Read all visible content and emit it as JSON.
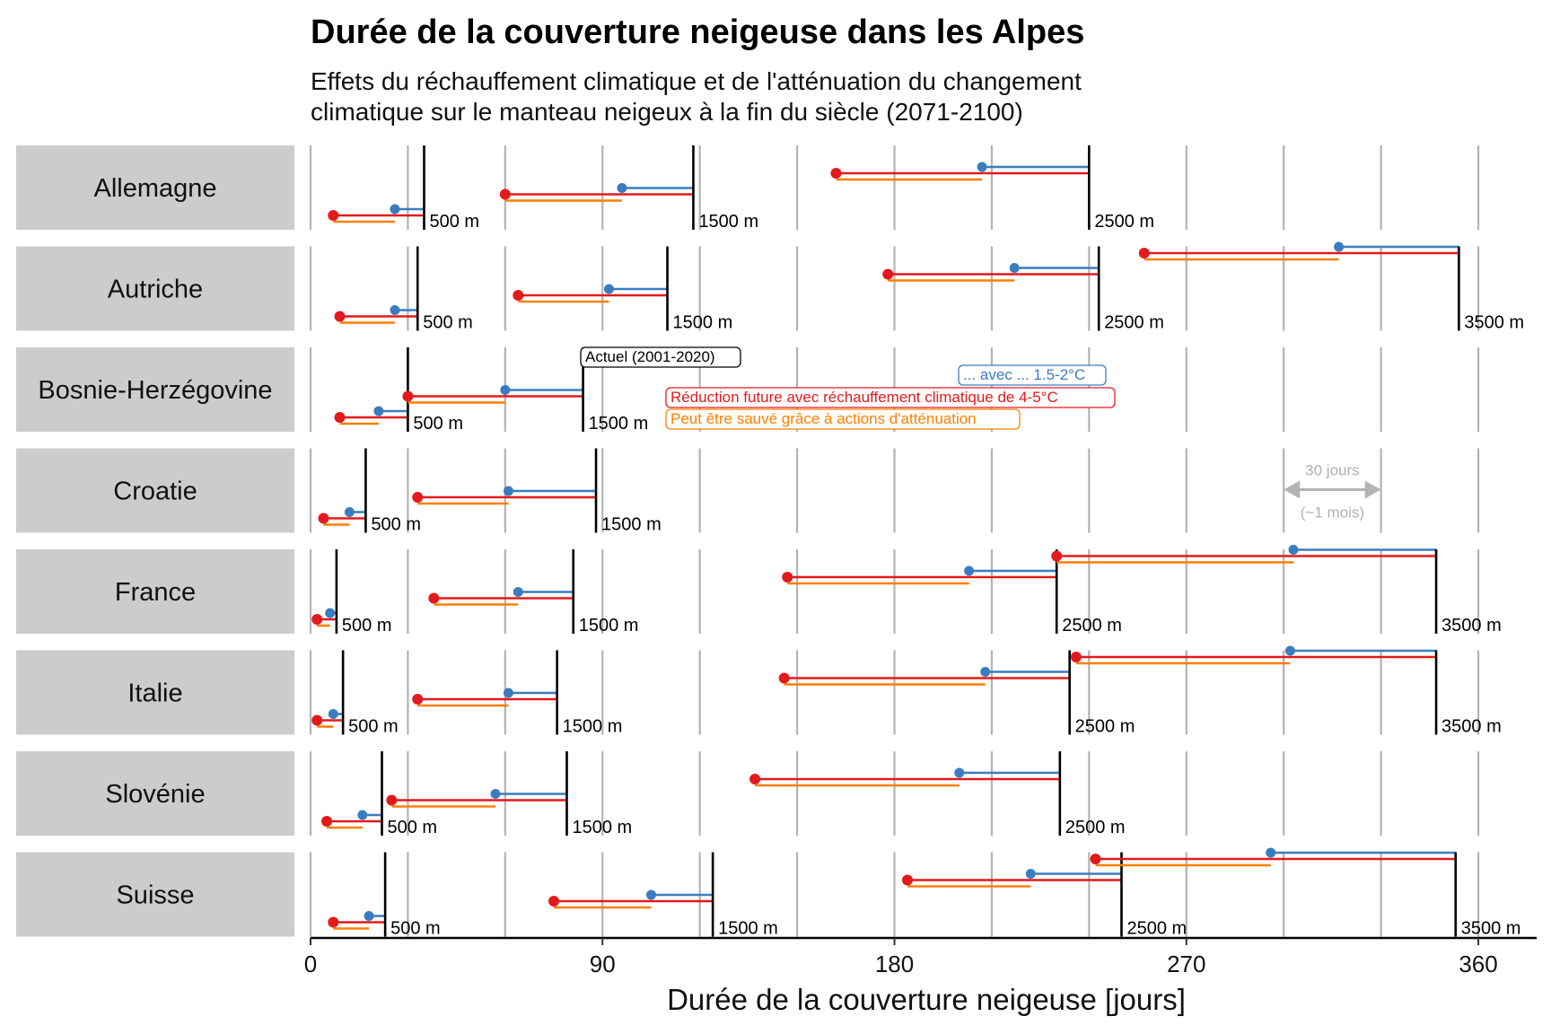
{
  "chart_data": {
    "type": "dumbbell",
    "title": "Durée de la couverture neigeuse dans les Alpes",
    "subtitle_lines": [
      "Effets du réchauffement climatique et de l'atténuation du changement",
      "climatique sur le manteau neigeux à la fin du siècle (2071-2100)"
    ],
    "xlabel": "Durée de la couverture neigeuse [jours]",
    "xlim": [
      0,
      380
    ],
    "xticks": [
      0,
      90,
      180,
      270,
      360
    ],
    "xtick_labels": [
      "0",
      "90",
      "180",
      "270",
      "360"
    ],
    "grid_step": 30,
    "colors": {
      "current": "#000000",
      "mitigated": "#3a7dbf",
      "warming": "#e31a1c",
      "saved": "#ff7f00",
      "grid": "#b3b3b3",
      "strip": "#cccccc"
    },
    "legend": {
      "current": "Actuel (2001-2020)",
      "mitigated": "... avec ... 1.5-2°C",
      "warming": "Réduction future avec réchauffement climatique de 4-5°C",
      "saved": "Peut être sauvé grâce à actions d'atténuation"
    },
    "scale_note": {
      "label": "30 jours",
      "sublabel": "(~1 mois)"
    },
    "countries": [
      {
        "name": "Allemagne",
        "stations": [
          {
            "alt": "500 m",
            "current": 35,
            "mitigated": 26,
            "warming": 7
          },
          {
            "alt": "1500 m",
            "current": 118,
            "mitigated": 96,
            "warming": 60
          },
          {
            "alt": "2500 m",
            "current": 240,
            "mitigated": 207,
            "warming": 162
          }
        ]
      },
      {
        "name": "Autriche",
        "stations": [
          {
            "alt": "500 m",
            "current": 33,
            "mitigated": 26,
            "warming": 9
          },
          {
            "alt": "1500 m",
            "current": 110,
            "mitigated": 92,
            "warming": 64
          },
          {
            "alt": "2500 m",
            "current": 243,
            "mitigated": 217,
            "warming": 178
          },
          {
            "alt": "3500 m",
            "current": 354,
            "mitigated": 317,
            "warming": 257
          }
        ]
      },
      {
        "name": "Bosnie-Herzégovine",
        "stations": [
          {
            "alt": "500 m",
            "current": 30,
            "mitigated": 21,
            "warming": 9
          },
          {
            "alt": "1500 m",
            "current": 84,
            "mitigated": 60,
            "warming": 30
          }
        ]
      },
      {
        "name": "Croatie",
        "stations": [
          {
            "alt": "500 m",
            "current": 17,
            "mitigated": 12,
            "warming": 4
          },
          {
            "alt": "1500 m",
            "current": 88,
            "mitigated": 61,
            "warming": 33
          }
        ]
      },
      {
        "name": "France",
        "stations": [
          {
            "alt": "500 m",
            "current": 8,
            "mitigated": 6,
            "warming": 2
          },
          {
            "alt": "1500 m",
            "current": 81,
            "mitigated": 64,
            "warming": 38
          },
          {
            "alt": "2500 m",
            "current": 230,
            "mitigated": 203,
            "warming": 147
          },
          {
            "alt": "3500 m",
            "current": 347,
            "mitigated": 303,
            "warming": 230
          }
        ]
      },
      {
        "name": "Italie",
        "stations": [
          {
            "alt": "500 m",
            "current": 10,
            "mitigated": 7,
            "warming": 2
          },
          {
            "alt": "1500 m",
            "current": 76,
            "mitigated": 61,
            "warming": 33
          },
          {
            "alt": "2500 m",
            "current": 234,
            "mitigated": 208,
            "warming": 146
          },
          {
            "alt": "3500 m",
            "current": 347,
            "mitigated": 302,
            "warming": 236
          }
        ]
      },
      {
        "name": "Slovénie",
        "stations": [
          {
            "alt": "500 m",
            "current": 22,
            "mitigated": 16,
            "warming": 5
          },
          {
            "alt": "1500 m",
            "current": 79,
            "mitigated": 57,
            "warming": 25
          },
          {
            "alt": "2500 m",
            "current": 231,
            "mitigated": 200,
            "warming": 137
          }
        ]
      },
      {
        "name": "Suisse",
        "stations": [
          {
            "alt": "500 m",
            "current": 23,
            "mitigated": 18,
            "warming": 7
          },
          {
            "alt": "1500 m",
            "current": 124,
            "mitigated": 105,
            "warming": 75
          },
          {
            "alt": "2500 m",
            "current": 250,
            "mitigated": 222,
            "warming": 184
          },
          {
            "alt": "3500 m",
            "current": 353,
            "mitigated": 296,
            "warming": 242
          }
        ]
      }
    ]
  }
}
